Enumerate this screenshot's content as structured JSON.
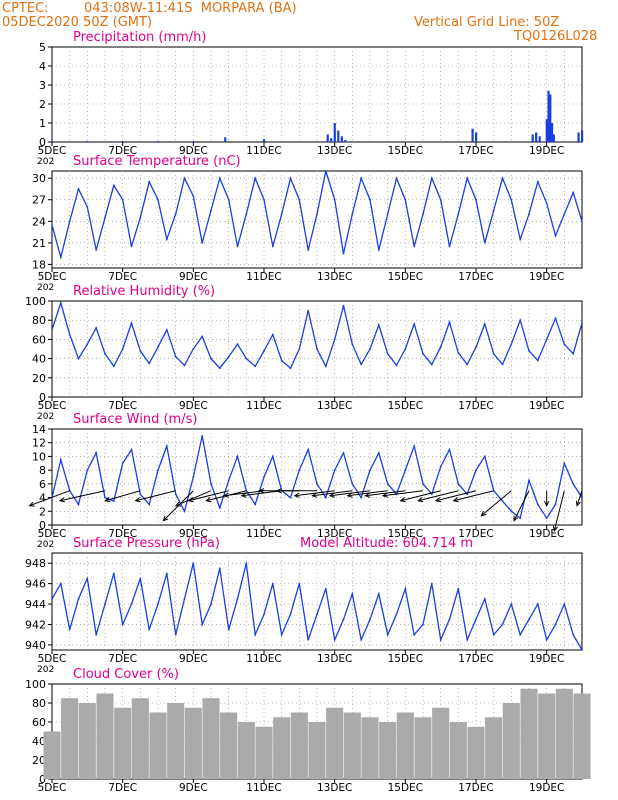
{
  "header": {
    "source": "CPTEC:",
    "location": "043:08W-11:41S  MORPARA (BA)",
    "run": "05DEC2020 50Z (GMT)",
    "grid_info": "Vertical Grid Line: 50Z",
    "code": "TQ0126L028"
  },
  "colors": {
    "header_text": "#e07010",
    "title_text": "#e0008a",
    "series_line": "#1a3fe0",
    "bars_precip": "#1a3fe0",
    "bars_cloud": "#aaaaaa",
    "wind_arrow": "#000000",
    "grid": "#888888"
  },
  "x_axis": {
    "tick_labels": [
      "5DEC",
      "7DEC",
      "9DEC",
      "11DEC",
      "13DEC",
      "15DEC",
      "17DEC",
      "19DEC"
    ],
    "truncated_year_label": "202"
  },
  "chart_data": [
    {
      "type": "bar",
      "title": "Precipitation (mm/h)",
      "ylim": [
        0,
        5
      ],
      "yticks": [
        "0",
        "1",
        "2",
        "3",
        "4",
        "5"
      ],
      "grid": true,
      "x_range_days": [
        5,
        20
      ],
      "series": [
        {
          "x": [
            5.0,
            6.0,
            7.0,
            8.0,
            9.0,
            9.9,
            11.0,
            12.8,
            12.9,
            13.0,
            13.1,
            13.2,
            13.3,
            16.9,
            17.0,
            18.6,
            18.7,
            18.8,
            19.0,
            19.05,
            19.1,
            19.15,
            19.2,
            19.9,
            20.0
          ],
          "values": [
            0.05,
            0.05,
            0.05,
            0.05,
            0.05,
            0.25,
            0.15,
            0.4,
            0.2,
            1.0,
            0.6,
            0.3,
            0.1,
            0.7,
            0.5,
            0.4,
            0.5,
            0.3,
            1.2,
            2.7,
            2.5,
            1.0,
            0.4,
            0.5,
            0.6
          ]
        }
      ]
    },
    {
      "type": "line",
      "title": "Surface Temperature (nC)",
      "ylim": [
        17.5,
        31
      ],
      "yticks": [
        "18",
        "21",
        "24",
        "27",
        "30"
      ],
      "grid": true,
      "series": [
        {
          "x": [
            5.0,
            5.25,
            5.5,
            5.75,
            6.0,
            6.25,
            6.5,
            6.75,
            7.0,
            7.25,
            7.5,
            7.75,
            8.0,
            8.25,
            8.5,
            8.75,
            9.0,
            9.25,
            9.5,
            9.75,
            10.0,
            10.25,
            10.5,
            10.75,
            11.0,
            11.25,
            11.5,
            11.75,
            12.0,
            12.25,
            12.5,
            12.75,
            13.0,
            13.25,
            13.5,
            13.75,
            14.0,
            14.25,
            14.5,
            14.75,
            15.0,
            15.25,
            15.5,
            15.75,
            16.0,
            16.25,
            16.5,
            16.75,
            17.0,
            17.25,
            17.5,
            17.75,
            18.0,
            18.25,
            18.5,
            18.75,
            19.0,
            19.25,
            19.5,
            19.75,
            20.0
          ],
          "values": [
            23.5,
            19.0,
            24.0,
            28.5,
            26.0,
            20.0,
            24.5,
            29.0,
            27.0,
            20.5,
            24.5,
            29.5,
            27.0,
            21.5,
            25.0,
            30.0,
            27.5,
            21.0,
            25.5,
            30.0,
            27.0,
            20.5,
            25.0,
            30.0,
            27.0,
            20.5,
            25.0,
            30.0,
            27.0,
            20.0,
            25.0,
            31.0,
            27.0,
            19.5,
            25.0,
            30.0,
            27.0,
            20.0,
            25.0,
            30.0,
            27.0,
            20.5,
            25.0,
            30.0,
            27.0,
            20.5,
            25.0,
            30.0,
            27.0,
            21.0,
            25.5,
            30.0,
            27.0,
            21.5,
            25.0,
            29.5,
            26.5,
            22.0,
            25.0,
            28.0,
            24.0
          ]
        }
      ]
    },
    {
      "type": "line",
      "title": "Relative Humidity (%)",
      "ylim": [
        0,
        100
      ],
      "yticks": [
        "0",
        "20",
        "40",
        "60",
        "80",
        "100"
      ],
      "grid": true,
      "series": [
        {
          "x": [
            5.0,
            5.25,
            5.5,
            5.75,
            6.0,
            6.25,
            6.5,
            6.75,
            7.0,
            7.25,
            7.5,
            7.75,
            8.0,
            8.25,
            8.5,
            8.75,
            9.0,
            9.25,
            9.5,
            9.75,
            10.0,
            10.25,
            10.5,
            10.75,
            11.0,
            11.25,
            11.5,
            11.75,
            12.0,
            12.25,
            12.5,
            12.75,
            13.0,
            13.25,
            13.5,
            13.75,
            14.0,
            14.25,
            14.5,
            14.75,
            15.0,
            15.25,
            15.5,
            15.75,
            16.0,
            16.25,
            16.5,
            16.75,
            17.0,
            17.25,
            17.5,
            17.75,
            18.0,
            18.25,
            18.5,
            18.75,
            19.0,
            19.25,
            19.5,
            19.75,
            20.0
          ],
          "values": [
            70,
            98,
            65,
            40,
            55,
            72,
            45,
            32,
            50,
            77,
            48,
            35,
            52,
            70,
            42,
            33,
            50,
            63,
            40,
            30,
            42,
            55,
            40,
            32,
            48,
            65,
            38,
            30,
            50,
            90,
            50,
            32,
            60,
            95,
            55,
            34,
            50,
            75,
            45,
            33,
            50,
            76,
            45,
            34,
            52,
            78,
            46,
            34,
            52,
            76,
            45,
            34,
            55,
            80,
            48,
            38,
            60,
            82,
            55,
            45,
            77
          ]
        }
      ]
    },
    {
      "type": "line",
      "title": "Surface Wind (m/s)",
      "ylim": [
        0,
        14
      ],
      "yticks": [
        "0",
        "2",
        "4",
        "6",
        "8",
        "10",
        "12",
        "14"
      ],
      "grid": true,
      "series": [
        {
          "x": [
            5.0,
            5.25,
            5.5,
            5.75,
            6.0,
            6.25,
            6.5,
            6.75,
            7.0,
            7.25,
            7.5,
            7.75,
            8.0,
            8.25,
            8.5,
            8.75,
            9.0,
            9.25,
            9.5,
            9.75,
            10.0,
            10.25,
            10.5,
            10.75,
            11.0,
            11.25,
            11.5,
            11.75,
            12.0,
            12.25,
            12.5,
            12.75,
            13.0,
            13.25,
            13.5,
            13.75,
            14.0,
            14.25,
            14.5,
            14.75,
            15.0,
            15.25,
            15.5,
            15.75,
            16.0,
            16.25,
            16.5,
            16.75,
            17.0,
            17.25,
            17.5,
            17.75,
            18.0,
            18.25,
            18.5,
            18.75,
            19.0,
            19.25,
            19.5,
            19.75,
            20.0
          ],
          "values": [
            4.0,
            9.5,
            5.0,
            3.0,
            8.0,
            10.5,
            4.0,
            3.5,
            9.0,
            11.0,
            4.5,
            3.0,
            8.0,
            11.5,
            4.5,
            2.0,
            7.0,
            13.0,
            6.0,
            2.5,
            6.5,
            10.0,
            5.0,
            3.0,
            7.0,
            10.0,
            5.0,
            4.0,
            8.0,
            11.0,
            6.0,
            4.0,
            8.0,
            10.5,
            6.0,
            4.0,
            8.0,
            10.5,
            6.0,
            4.5,
            8.0,
            11.5,
            6.0,
            4.5,
            8.5,
            11.0,
            6.0,
            4.5,
            8.0,
            10.0,
            5.0,
            3.5,
            2.0,
            1.0,
            6.5,
            3.0,
            1.0,
            3.0,
            9.0,
            6.0,
            4.0
          ]
        }
      ],
      "wind_vectors": {
        "x": [
          5.5,
          6.5,
          7.5,
          8.5,
          9.0,
          9.5,
          10.0,
          10.5,
          11.0,
          11.5,
          12.0,
          12.5,
          13.0,
          13.5,
          14.0,
          14.5,
          15.0,
          15.5,
          16.0,
          16.5,
          17.0,
          17.5,
          18.0,
          18.5,
          19.0,
          19.5,
          20.0
        ],
        "u": [
          -8,
          -9,
          -7,
          -8,
          -6,
          -7,
          -8,
          -8,
          -8,
          -8,
          -8,
          -8,
          -8,
          -8,
          -8,
          -8,
          -8,
          -8,
          -8,
          -8,
          -8,
          -8,
          -6,
          -3,
          0,
          -2,
          -1
        ],
        "v": [
          -3,
          -2,
          -2,
          -2,
          -6,
          -3,
          -2,
          -2,
          -1,
          -1,
          0,
          0,
          -1,
          -1,
          -1,
          -1,
          -1,
          -1,
          -2,
          -2,
          -2,
          -2,
          -5,
          -6,
          -3,
          -8,
          -3
        ]
      }
    },
    {
      "type": "line",
      "title": "Surface Pressure (hPa)",
      "annotation": "Model Altitude: 604.714 m",
      "ylim": [
        939.5,
        949
      ],
      "yticks": [
        "940",
        "942",
        "944",
        "946",
        "948"
      ],
      "grid": true,
      "series": [
        {
          "x": [
            5.0,
            5.25,
            5.5,
            5.75,
            6.0,
            6.25,
            6.5,
            6.75,
            7.0,
            7.25,
            7.5,
            7.75,
            8.0,
            8.25,
            8.5,
            8.75,
            9.0,
            9.25,
            9.5,
            9.75,
            10.0,
            10.25,
            10.5,
            10.75,
            11.0,
            11.25,
            11.5,
            11.75,
            12.0,
            12.25,
            12.5,
            12.75,
            13.0,
            13.25,
            13.5,
            13.75,
            14.0,
            14.25,
            14.5,
            14.75,
            15.0,
            15.25,
            15.5,
            15.75,
            16.0,
            16.25,
            16.5,
            16.75,
            17.0,
            17.25,
            17.5,
            17.75,
            18.0,
            18.25,
            18.5,
            18.75,
            19.0,
            19.25,
            19.5,
            19.75,
            20.0
          ],
          "values": [
            944.5,
            946.0,
            941.5,
            944.5,
            946.5,
            941.0,
            944.0,
            947.0,
            942.0,
            944.0,
            946.5,
            941.5,
            944.0,
            947.0,
            941.0,
            944.5,
            948.0,
            942.0,
            944.0,
            947.5,
            941.5,
            944.5,
            948.0,
            941.0,
            943.0,
            946.0,
            941.0,
            943.0,
            946.0,
            940.5,
            943.0,
            945.5,
            940.5,
            942.5,
            945.0,
            940.5,
            942.5,
            945.0,
            941.0,
            943.0,
            945.5,
            941.0,
            942.0,
            946.0,
            940.5,
            942.5,
            945.5,
            940.5,
            942.5,
            944.5,
            941.0,
            942.0,
            944.0,
            941.0,
            942.5,
            944.0,
            940.5,
            942.0,
            944.0,
            941.0,
            939.5
          ]
        }
      ]
    },
    {
      "type": "bar",
      "title": "Cloud Cover (%)",
      "ylim": [
        0,
        100
      ],
      "yticks": [
        "0",
        "20",
        "40",
        "60",
        "80",
        "100"
      ],
      "grid": true,
      "series": [
        {
          "x": [
            5.0,
            5.5,
            6.0,
            6.5,
            7.0,
            7.5,
            8.0,
            8.5,
            9.0,
            9.5,
            10.0,
            10.5,
            11.0,
            11.5,
            12.0,
            12.5,
            13.0,
            13.5,
            14.0,
            14.5,
            15.0,
            15.5,
            16.0,
            16.5,
            17.0,
            17.5,
            18.0,
            18.5,
            19.0,
            19.5,
            20.0
          ],
          "values": [
            50,
            85,
            80,
            90,
            75,
            85,
            70,
            80,
            75,
            85,
            70,
            60,
            55,
            65,
            70,
            60,
            75,
            70,
            65,
            60,
            70,
            65,
            75,
            60,
            55,
            65,
            80,
            95,
            90,
            95,
            90
          ]
        }
      ]
    }
  ]
}
